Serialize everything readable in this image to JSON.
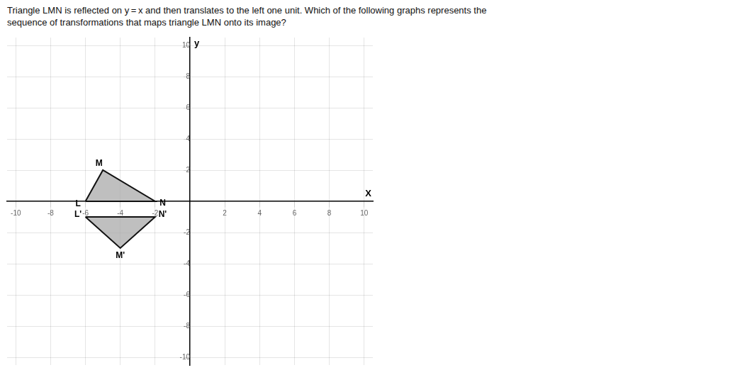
{
  "chart_data": {
    "type": "polygon",
    "title": [
      "Triangle LMN is reflected on y = x and then translates to the left one unit. Which of the following graphs represents the",
      "sequence of transformations that maps triangle LMN onto its image?"
    ],
    "xlabel": "X",
    "ylabel": "y",
    "series": [
      {
        "x": [
          -6,
          -5,
          -2
        ],
        "values": [
          0,
          2,
          0
        ],
        "point_labels": [
          "L",
          "M",
          "N"
        ],
        "color": "#aaaaaa"
      },
      {
        "x": [
          -6,
          -4,
          -2
        ],
        "values": [
          -1,
          -3,
          -1
        ],
        "point_labels": [
          "L'",
          "M'",
          "N'"
        ],
        "color": "#aaaaaa"
      }
    ],
    "xlim": [
      -10.5,
      10.5
    ],
    "ylim": [
      -10.5,
      10.5
    ],
    "xticks": [
      -10,
      -8,
      -6,
      -4,
      -2,
      2,
      4,
      6,
      8,
      10
    ],
    "yticks": [
      -10,
      -8,
      -6,
      -4,
      -2,
      2,
      4,
      6,
      8,
      10
    ],
    "grid": true
  }
}
